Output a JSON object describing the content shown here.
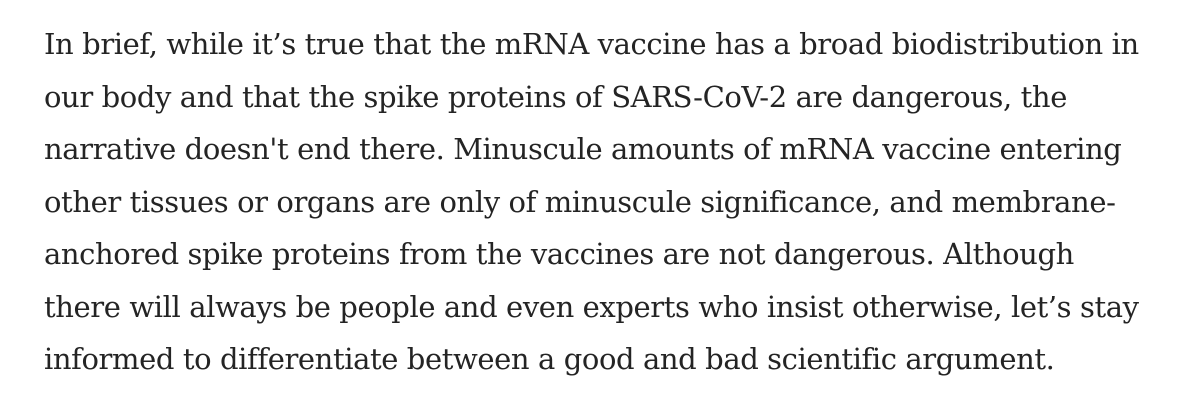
{
  "article": {
    "paragraph_lines": [
      "In brief, while it’s true that the mRNA vaccine has a broad biodistribution in",
      "our body and that the spike proteins of SARS-CoV-2 are dangerous, the",
      "narrative doesn't end there. Minuscule amounts of mRNA vaccine entering",
      "other tissues or organs are only of minuscule significance, and membrane-",
      "anchored spike proteins from the vaccines are not dangerous. Although",
      "there will always be people and even experts who insist otherwise, let’s stay",
      "informed to differentiate between a good and bad scientific argument."
    ]
  },
  "colors": {
    "text": "#242424",
    "background": "#ffffff"
  }
}
